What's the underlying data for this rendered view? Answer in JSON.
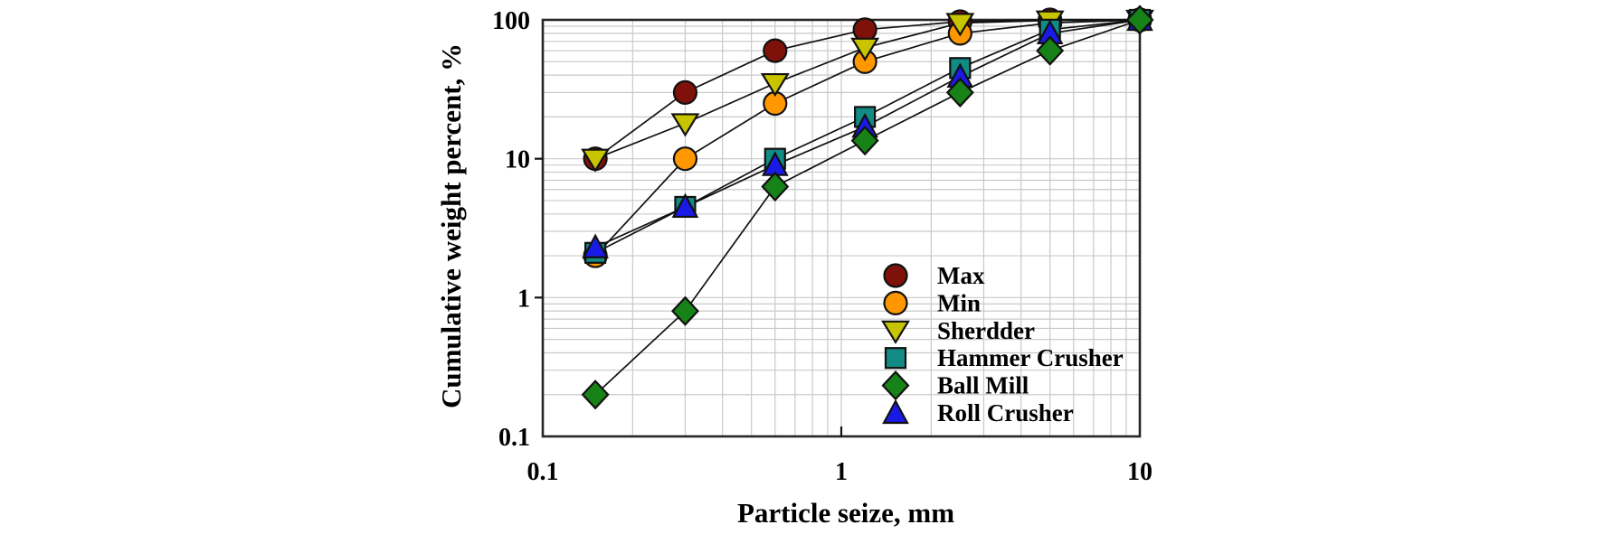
{
  "chart_data": {
    "type": "line",
    "title": "",
    "xlabel": "Particle seize, mm",
    "ylabel": "Cumulative weight percent, %",
    "x_scale": "log",
    "y_scale": "log",
    "xlim": [
      0.1,
      10
    ],
    "ylim": [
      0.1,
      100
    ],
    "x_ticks": [
      "0.1",
      "1",
      "10"
    ],
    "y_ticks": [
      "0.1",
      "1",
      "10",
      "100"
    ],
    "grid": "major+minor",
    "legend_position": "inside-right",
    "x": [
      0.15,
      0.3,
      0.6,
      1.2,
      2.5,
      5,
      10
    ],
    "series": [
      {
        "name": "Max",
        "marker": "circle",
        "color": "#7E120B",
        "values": [
          10,
          30,
          60,
          85,
          97,
          100,
          100
        ]
      },
      {
        "name": "Min",
        "marker": "circle",
        "color": "#FF9800",
        "values": [
          2,
          10,
          25,
          50,
          80,
          95,
          100
        ]
      },
      {
        "name": "Sherdder",
        "marker": "triangle-down",
        "color": "#C8C400",
        "values": [
          10,
          18,
          35,
          63,
          95,
          99,
          100
        ]
      },
      {
        "name": "Hammer Crusher",
        "marker": "square",
        "color": "#128B84",
        "values": [
          2.1,
          4.5,
          10,
          20,
          45,
          85,
          100
        ]
      },
      {
        "name": "Ball Mill",
        "marker": "diamond",
        "color": "#178217",
        "values": [
          0.2,
          0.8,
          6.3,
          13.5,
          30,
          60,
          100
        ]
      },
      {
        "name": "Roll Crusher",
        "marker": "triangle-up",
        "color": "#1A1AE6",
        "values": [
          2.3,
          4.5,
          9,
          17,
          39,
          80,
          100
        ]
      }
    ],
    "marker_draw_order": [
      0,
      1,
      2,
      3,
      5,
      4
    ],
    "colors": {
      "line": "#111111",
      "marker_outline": "#111111",
      "grid": "#c9c9c9",
      "border": "#262626",
      "text": "#000000",
      "background": "#ffffff"
    }
  }
}
